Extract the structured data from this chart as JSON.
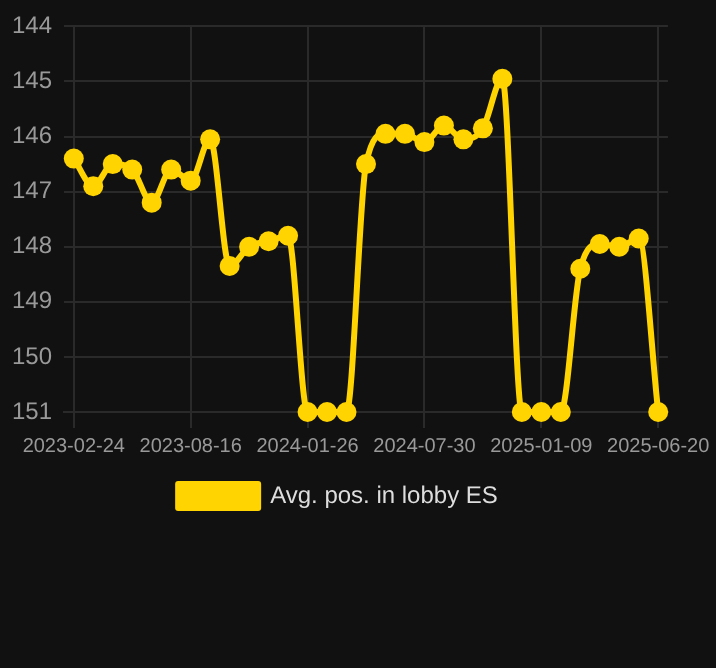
{
  "chart_data": {
    "type": "line",
    "categories": [
      "2023-02-24",
      null,
      null,
      null,
      null,
      null,
      "2023-08-16",
      null,
      null,
      null,
      null,
      null,
      "2024-01-26",
      null,
      null,
      null,
      null,
      null,
      "2024-07-30",
      null,
      null,
      null,
      null,
      null,
      "2025-01-09",
      null,
      null,
      null,
      null,
      null,
      "2025-06-20"
    ],
    "series": [
      {
        "name": "Avg. pos. in lobby ES",
        "color": "#ffd400",
        "values": [
          146.4,
          146.9,
          146.5,
          146.6,
          147.2,
          146.6,
          146.8,
          146.05,
          148.35,
          148.0,
          147.9,
          147.8,
          151,
          151,
          151,
          146.5,
          145.95,
          145.95,
          146.1,
          145.8,
          146.05,
          145.85,
          144.95,
          151,
          151,
          151,
          148.4,
          147.95,
          148.0,
          147.85,
          151
        ]
      }
    ],
    "ylim": [
      151,
      144
    ],
    "yticks": [
      144,
      145,
      146,
      147,
      148,
      149,
      150,
      151
    ],
    "grid": true,
    "legend": "bottom",
    "marker": "circle",
    "line_style": "solid"
  }
}
